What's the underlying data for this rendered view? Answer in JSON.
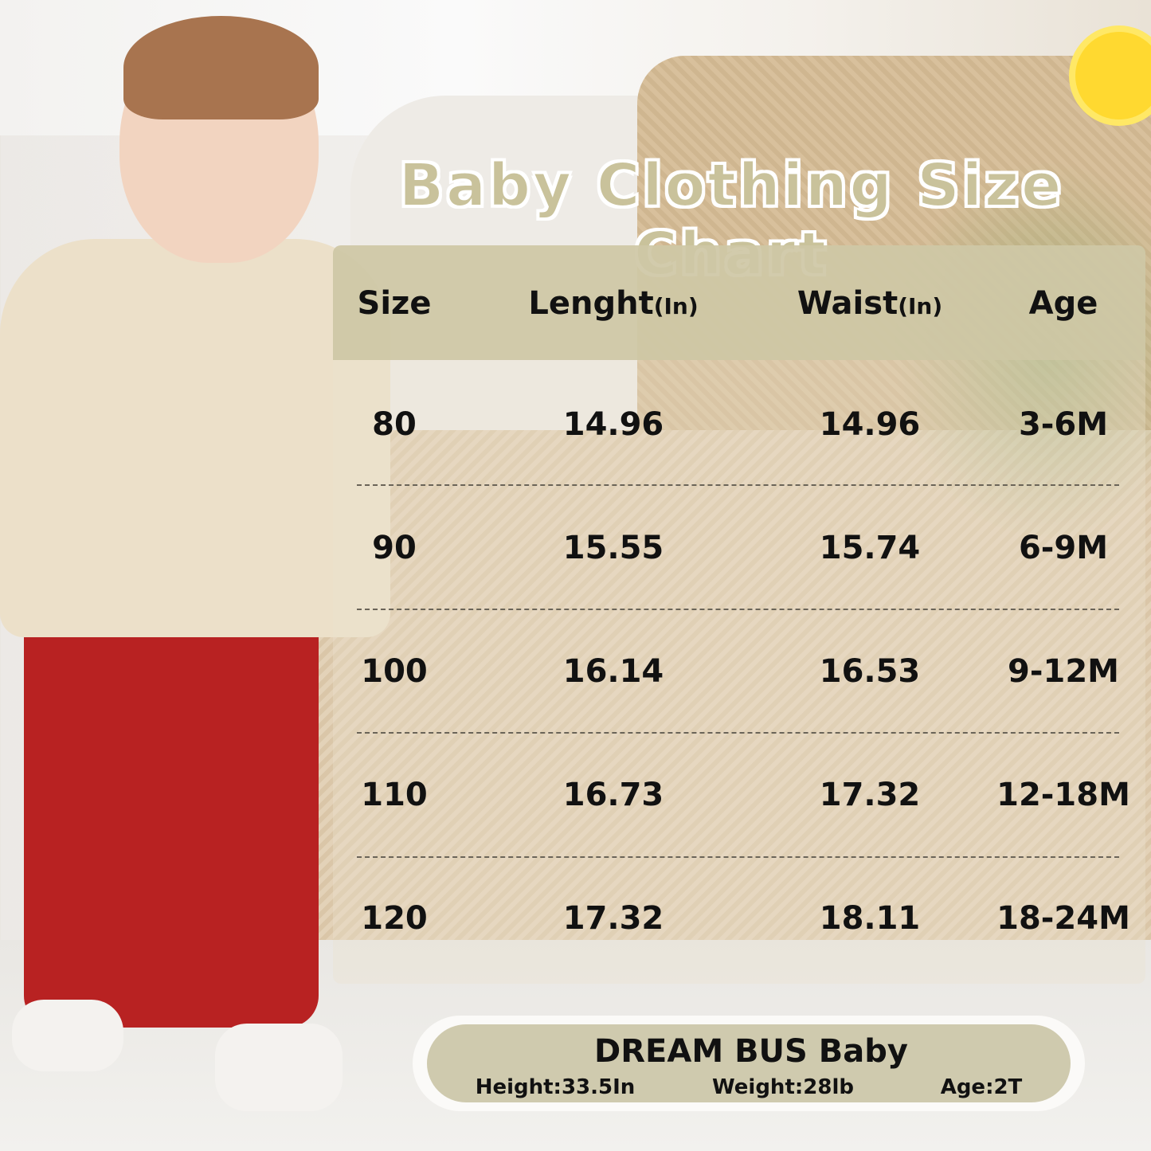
{
  "title": "Baby Clothing Size Chart",
  "table": {
    "headers": [
      {
        "label": "Size",
        "unit": ""
      },
      {
        "label": "Lenght",
        "unit": "(In)"
      },
      {
        "label": "Waist",
        "unit": "(In)"
      },
      {
        "label": "Age",
        "unit": ""
      }
    ],
    "rows": [
      [
        "80",
        "14.96",
        "14.96",
        "3-6M"
      ],
      [
        "90",
        "15.55",
        "15.74",
        "6-9M"
      ],
      [
        "100",
        "16.14",
        "16.53",
        "9-12M"
      ],
      [
        "110",
        "16.73",
        "17.32",
        "12-18M"
      ],
      [
        "120",
        "17.32",
        "18.11",
        "18-24M"
      ]
    ]
  },
  "model": {
    "brand": "DREAM BUS Baby",
    "height": "Height:33.5In",
    "weight": "Weight:28lb",
    "age": "Age:2T"
  },
  "colors": {
    "title": "#c9c29b",
    "header_band": "#cdc7a4",
    "pill": "#cfcaae",
    "pants": "#b82222",
    "sweater": "#ece0c9"
  },
  "icons": [
    "sun-icon"
  ]
}
